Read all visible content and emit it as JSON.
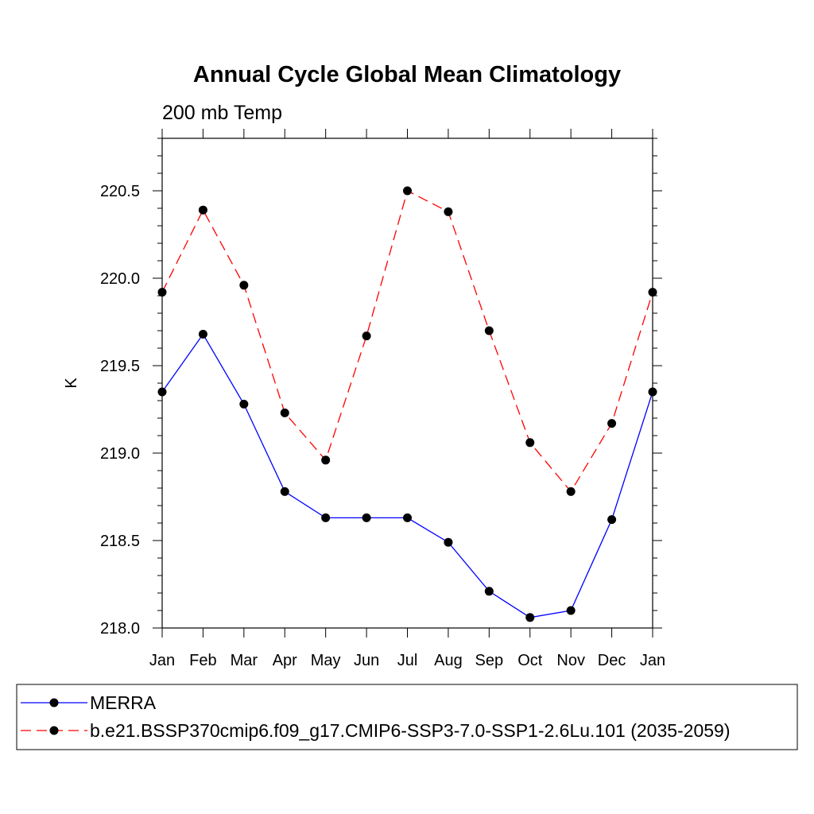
{
  "chart_data": {
    "type": "line",
    "title": "Annual Cycle Global Mean Climatology",
    "subtitle": "200 mb Temp",
    "xlabel": "",
    "ylabel": "K",
    "categories": [
      "Jan",
      "Feb",
      "Mar",
      "Apr",
      "May",
      "Jun",
      "Jul",
      "Aug",
      "Sep",
      "Oct",
      "Nov",
      "Dec",
      "Jan"
    ],
    "ylim": [
      218.0,
      220.8
    ],
    "yticks": [
      "218.0",
      "218.5",
      "219.0",
      "219.5",
      "220.0",
      "220.5"
    ],
    "grid": false,
    "legend_position": "bottom",
    "series": [
      {
        "name": "MERRA",
        "color": "#0000ff",
        "line_style": "solid",
        "marker": "filled-circle",
        "values": [
          219.35,
          219.68,
          219.28,
          218.78,
          218.63,
          218.63,
          218.63,
          218.49,
          218.21,
          218.06,
          218.1,
          218.62,
          219.35
        ]
      },
      {
        "name": "b.e21.BSSP370cmip6.f09_g17.CMIP6-SSP3-7.0-SSP1-2.6Lu.101 (2035-2059)",
        "color": "#ff0000",
        "line_style": "dashed",
        "marker": "filled-circle",
        "values": [
          219.92,
          220.39,
          219.96,
          219.23,
          218.96,
          219.67,
          220.5,
          220.38,
          219.7,
          219.06,
          218.78,
          219.17,
          219.92
        ]
      }
    ]
  }
}
